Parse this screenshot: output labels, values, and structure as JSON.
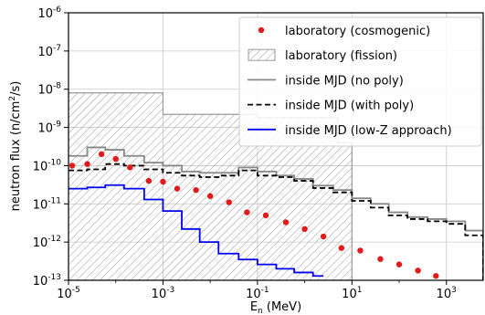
{
  "chart_data": {
    "type": "line",
    "xlabel_main": "E",
    "xlabel_sub": "n",
    "xlabel_unit": " (MeV)",
    "ylabel_main": "neutron flux (n/cm",
    "ylabel_sup": "2",
    "ylabel_unit": "/s)",
    "x_scale": "log",
    "y_scale": "log",
    "xlim": [
      1e-05,
      6000
    ],
    "ylim": [
      1e-13,
      1e-06
    ],
    "grid": true,
    "legend_position": "top-right",
    "x_ticks": [
      {
        "exp": "-5",
        "value": 1e-05
      },
      {
        "exp": "-3",
        "value": 0.001
      },
      {
        "exp": "-1",
        "value": 0.1
      },
      {
        "exp": "1",
        "value": 10
      },
      {
        "exp": "3",
        "value": 1000
      }
    ],
    "y_ticks": [
      {
        "exp": "-13",
        "value": 1e-13
      },
      {
        "exp": "-12",
        "value": 1e-12
      },
      {
        "exp": "-11",
        "value": 1e-11
      },
      {
        "exp": "-10",
        "value": 1e-10
      },
      {
        "exp": "-9",
        "value": 1e-09
      },
      {
        "exp": "-8",
        "value": 1e-08
      },
      {
        "exp": "-7",
        "value": 1e-07
      },
      {
        "exp": "-6",
        "value": 1e-06
      }
    ],
    "series": [
      {
        "name": "laboratory (cosmogenic)",
        "style": "points",
        "color": "#e31a1c",
        "x": [
          1.2e-05,
          2.5e-05,
          5e-05,
          0.0001,
          0.0002,
          0.0005,
          0.001,
          0.002,
          0.005,
          0.01,
          0.025,
          0.06,
          0.15,
          0.4,
          1,
          2.5,
          6,
          15,
          40,
          100,
          250,
          600
        ],
        "y": [
          1e-10,
          1.1e-10,
          2e-10,
          1.5e-10,
          9e-11,
          4e-11,
          3.8e-11,
          2.5e-11,
          2.3e-11,
          1.6e-11,
          1.1e-11,
          6e-12,
          5e-12,
          3.3e-12,
          2.2e-12,
          1.4e-12,
          7e-13,
          6e-13,
          3.6e-13,
          2.6e-13,
          1.8e-13,
          1.3e-13
        ]
      },
      {
        "name": "laboratory (fission)",
        "style": "hatched-step",
        "color": "#999999",
        "edges": [
          1e-05,
          0.001,
          0.1,
          5,
          10
        ],
        "y": [
          8e-09,
          2.2e-09,
          1.8e-09,
          4e-10
        ]
      },
      {
        "name": "inside MJD (no poly)",
        "style": "step",
        "color": "#888888",
        "edges": [
          1e-05,
          2.5e-05,
          6e-05,
          0.00015,
          0.0004,
          0.001,
          0.0025,
          0.006,
          0.015,
          0.04,
          0.1,
          0.25,
          0.6,
          1.5,
          4,
          10,
          25,
          60,
          150,
          400,
          1000,
          2500,
          6000
        ],
        "y": [
          1.8e-10,
          3e-10,
          2.6e-10,
          1.8e-10,
          1.2e-10,
          1e-10,
          7e-11,
          6.5e-11,
          6.5e-11,
          9e-11,
          7e-11,
          5.5e-11,
          4.5e-11,
          3e-11,
          2.3e-11,
          1.4e-11,
          1e-11,
          6e-12,
          4.5e-12,
          4e-12,
          3.5e-12,
          2e-12
        ]
      },
      {
        "name": "inside MJD (with poly)",
        "style": "step-dashed",
        "color": "#000000",
        "edges": [
          1e-05,
          2.5e-05,
          6e-05,
          0.00015,
          0.0004,
          0.001,
          0.0025,
          0.006,
          0.015,
          0.04,
          0.1,
          0.25,
          0.6,
          1.5,
          4,
          10,
          25,
          60,
          150,
          400,
          1000,
          2500,
          6000
        ],
        "y": [
          7.5e-11,
          8e-11,
          1.1e-10,
          1e-10,
          8e-11,
          6.5e-11,
          5.5e-11,
          5e-11,
          5.5e-11,
          7.5e-11,
          5.5e-11,
          5e-11,
          4e-11,
          2.6e-11,
          2e-11,
          1.2e-11,
          8e-12,
          5e-12,
          4e-12,
          3.5e-12,
          3e-12,
          1.5e-12
        ]
      },
      {
        "name": "inside MJD (low-Z approach)",
        "style": "step",
        "color": "#0000ee",
        "edges": [
          1e-05,
          2.5e-05,
          6e-05,
          0.00015,
          0.0004,
          0.001,
          0.0025,
          0.006,
          0.015,
          0.04,
          0.1,
          0.25,
          0.6,
          1.5,
          2.5
        ],
        "y": [
          2.5e-11,
          2.7e-11,
          3.1e-11,
          2.5e-11,
          1.3e-11,
          6.5e-12,
          2.2e-12,
          1e-12,
          5e-13,
          3.5e-13,
          2.6e-13,
          2e-13,
          1.6e-13,
          1.3e-13
        ]
      }
    ]
  }
}
